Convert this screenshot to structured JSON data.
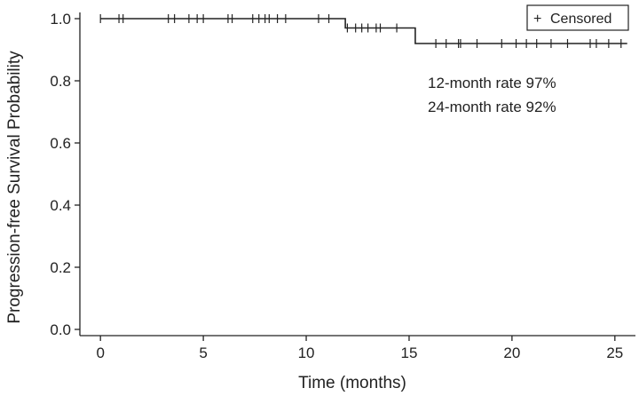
{
  "chart_data": {
    "type": "line",
    "subtype": "kaplan-meier-step",
    "xlabel": "Time (months)",
    "ylabel": "Progression-free Survival Probability",
    "xlim": [
      -1,
      26
    ],
    "ylim": [
      -0.02,
      1.02
    ],
    "xticks": [
      0,
      5,
      10,
      15,
      20,
      25
    ],
    "yticks": [
      0.0,
      0.2,
      0.4,
      0.6,
      0.8,
      1.0
    ],
    "ytick_labels": [
      "0.0",
      "0.2",
      "0.4",
      "0.6",
      "0.8",
      "1.0"
    ],
    "grid": false,
    "legend": {
      "position": "top-right",
      "marker": "+",
      "label": "Censored"
    },
    "series": [
      {
        "x": [
          0,
          11.9,
          11.9,
          15.3,
          15.3,
          25.6
        ],
        "y": [
          1.0,
          1.0,
          0.97,
          0.97,
          0.92,
          0.92
        ]
      }
    ],
    "censored": [
      {
        "x": 0.0,
        "y": 1.0
      },
      {
        "x": 0.9,
        "y": 1.0
      },
      {
        "x": 1.1,
        "y": 1.0
      },
      {
        "x": 3.3,
        "y": 1.0
      },
      {
        "x": 3.6,
        "y": 1.0
      },
      {
        "x": 4.3,
        "y": 1.0
      },
      {
        "x": 4.7,
        "y": 1.0
      },
      {
        "x": 5.0,
        "y": 1.0
      },
      {
        "x": 6.2,
        "y": 1.0
      },
      {
        "x": 6.4,
        "y": 1.0
      },
      {
        "x": 7.4,
        "y": 1.0
      },
      {
        "x": 7.7,
        "y": 1.0
      },
      {
        "x": 8.0,
        "y": 1.0
      },
      {
        "x": 8.2,
        "y": 1.0
      },
      {
        "x": 8.6,
        "y": 1.0
      },
      {
        "x": 9.0,
        "y": 1.0
      },
      {
        "x": 10.6,
        "y": 1.0
      },
      {
        "x": 11.1,
        "y": 1.0
      },
      {
        "x": 12.0,
        "y": 0.97
      },
      {
        "x": 12.4,
        "y": 0.97
      },
      {
        "x": 12.7,
        "y": 0.97
      },
      {
        "x": 13.0,
        "y": 0.97
      },
      {
        "x": 13.4,
        "y": 0.97
      },
      {
        "x": 13.6,
        "y": 0.97
      },
      {
        "x": 14.4,
        "y": 0.97
      },
      {
        "x": 16.3,
        "y": 0.92
      },
      {
        "x": 16.8,
        "y": 0.92
      },
      {
        "x": 17.4,
        "y": 0.92
      },
      {
        "x": 17.5,
        "y": 0.92
      },
      {
        "x": 18.3,
        "y": 0.92
      },
      {
        "x": 19.5,
        "y": 0.92
      },
      {
        "x": 20.2,
        "y": 0.92
      },
      {
        "x": 20.7,
        "y": 0.92
      },
      {
        "x": 21.2,
        "y": 0.92
      },
      {
        "x": 21.9,
        "y": 0.92
      },
      {
        "x": 22.7,
        "y": 0.92
      },
      {
        "x": 23.8,
        "y": 0.92
      },
      {
        "x": 24.1,
        "y": 0.92
      },
      {
        "x": 24.7,
        "y": 0.92
      },
      {
        "x": 25.3,
        "y": 0.92
      }
    ],
    "annotations": [
      "12-month rate 97%",
      "24-month rate 92%"
    ],
    "line_color": "#222222"
  }
}
